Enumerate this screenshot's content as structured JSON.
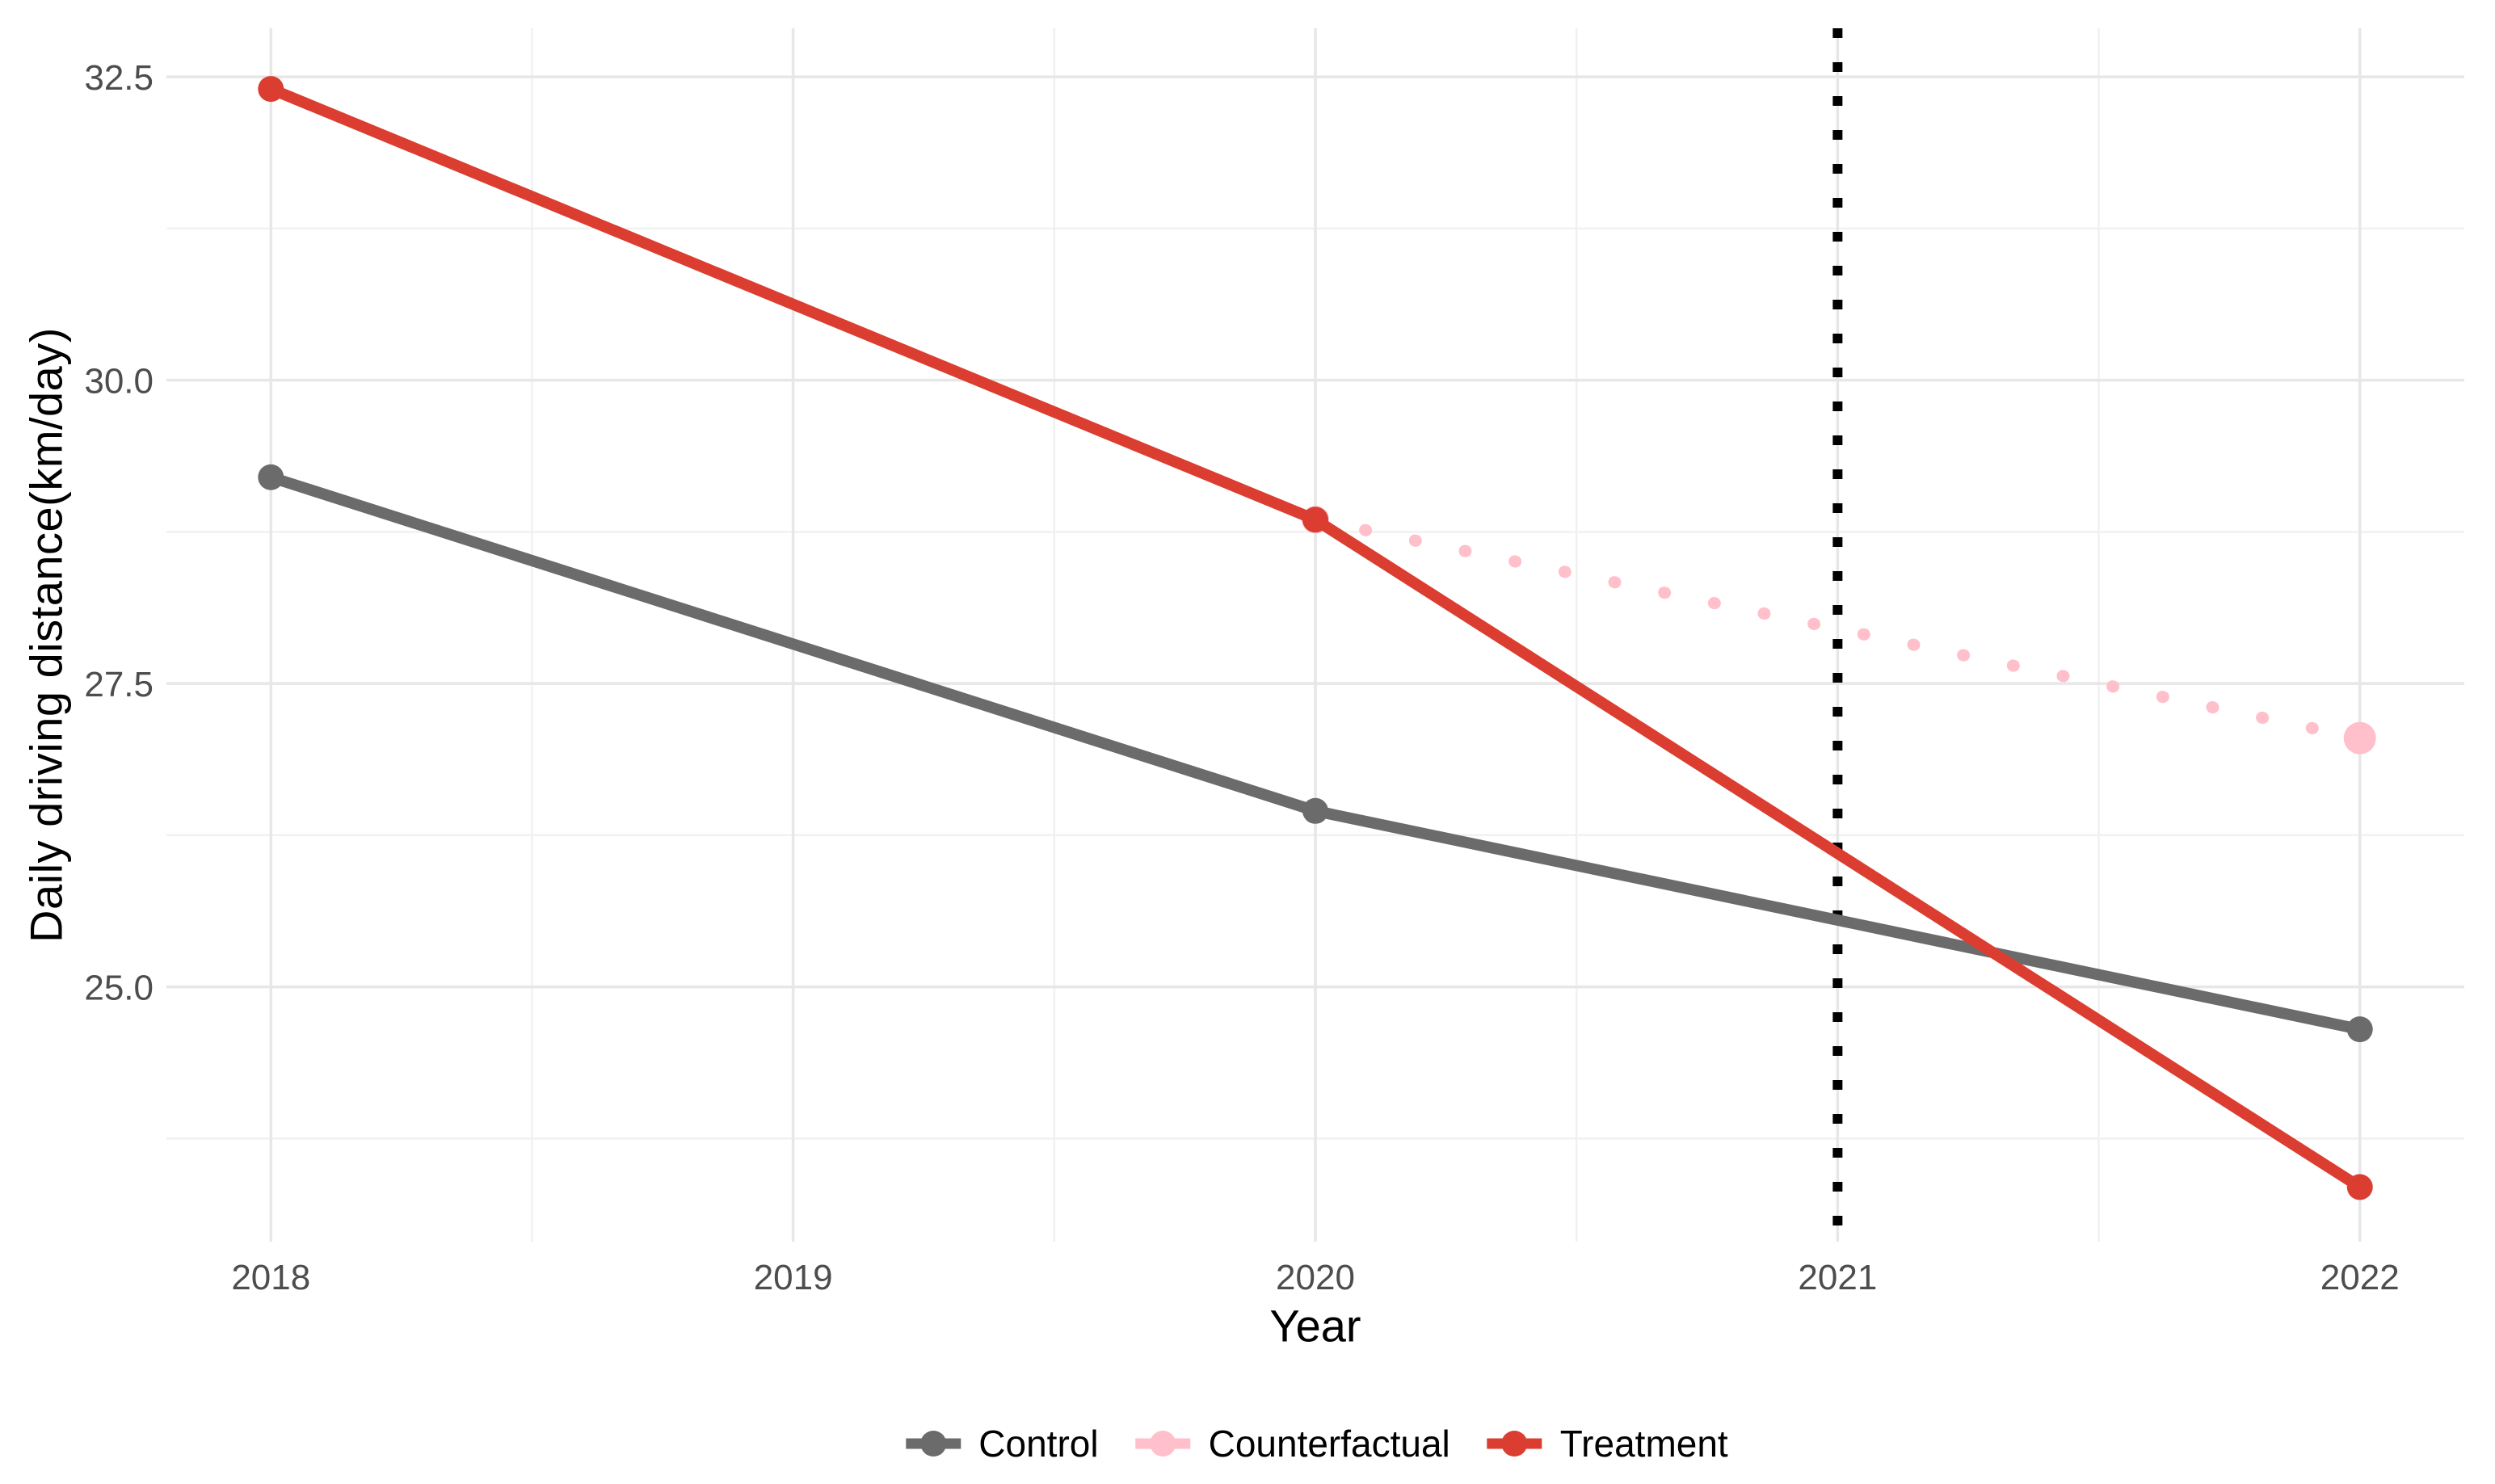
{
  "figure": {
    "background": "#ffffff"
  },
  "chart_data": {
    "type": "line",
    "title": "",
    "xlabel": "Year",
    "ylabel": "Daily driving distance(km/day)",
    "xlim": [
      2017.8,
      2022.2
    ],
    "ylim": [
      22.9,
      32.9
    ],
    "grid": true,
    "legend_position": "bottom",
    "x_ticks": [
      {
        "v": 2018,
        "label": "2018"
      },
      {
        "v": 2019,
        "label": "2019"
      },
      {
        "v": 2020,
        "label": "2020"
      },
      {
        "v": 2021,
        "label": "2021"
      },
      {
        "v": 2022,
        "label": "2022"
      }
    ],
    "y_ticks": [
      {
        "v": 25.0,
        "label": "25.0"
      },
      {
        "v": 27.5,
        "label": "27.5"
      },
      {
        "v": 30.0,
        "label": "30.0"
      },
      {
        "v": 32.5,
        "label": "32.5"
      }
    ],
    "x_minor_gridlines": [
      2018.5,
      2019.5,
      2020.5,
      2021.5
    ],
    "y_minor_gridlines": [
      23.75,
      26.25,
      28.75,
      31.25
    ],
    "vline": {
      "x": 2021,
      "linetype": "dotted",
      "color": "#000000"
    },
    "series": [
      {
        "name": "Control",
        "color": "#6b6b6b",
        "linetype": "solid",
        "x": [
          2018,
          2020,
          2022
        ],
        "y": [
          29.2,
          26.45,
          24.65
        ],
        "marker_r": [
          16,
          16,
          16
        ]
      },
      {
        "name": "Counterfactual",
        "color": "#ffc0cb",
        "linetype": "dotted",
        "x": [
          2020,
          2022
        ],
        "y": [
          28.85,
          27.05
        ],
        "marker_r": [
          17,
          20
        ]
      },
      {
        "name": "Treatment",
        "color": "#db3e30",
        "linetype": "solid",
        "x": [
          2018,
          2020,
          2022
        ],
        "y": [
          32.4,
          28.85,
          23.35
        ],
        "marker_r": [
          16,
          16,
          16
        ]
      }
    ],
    "styles": {
      "grid_major_color": "#e7e7e7",
      "grid_minor_color": "#f1f1f1",
      "tick_label_color": "#4d4d4d",
      "axis_title_color": "#000000",
      "legend_text_color": "#000000",
      "line_width": 14
    }
  }
}
